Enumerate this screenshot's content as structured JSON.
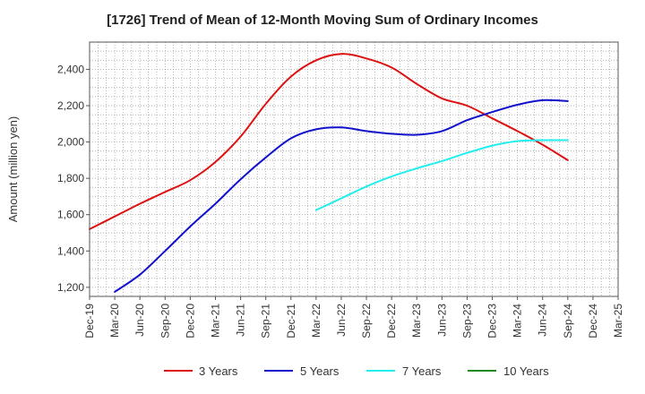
{
  "chart_data": {
    "type": "line",
    "title": "[1726]  Trend of Mean of 12-Month Moving Sum of Ordinary Incomes",
    "ylabel": "Amount (million yen)",
    "xlabel": "",
    "ylim": [
      1150,
      2550
    ],
    "yticks": [
      1200,
      1400,
      1600,
      1800,
      2000,
      2200,
      2400
    ],
    "ytick_labels": [
      "1,200",
      "1,400",
      "1,600",
      "1,800",
      "2,000",
      "2,200",
      "2,400"
    ],
    "categories": [
      "Dec-19",
      "Mar-20",
      "Jun-20",
      "Sep-20",
      "Dec-20",
      "Mar-21",
      "Jun-21",
      "Sep-21",
      "Dec-21",
      "Mar-22",
      "Jun-22",
      "Sep-22",
      "Dec-22",
      "Mar-23",
      "Jun-23",
      "Sep-23",
      "Dec-23",
      "Mar-24",
      "Jun-24",
      "Sep-24",
      "Dec-24",
      "Mar-25"
    ],
    "grid": true,
    "legend_position": "bottom",
    "series": [
      {
        "name": "3 Years",
        "color": "#dd1111",
        "values": [
          1520,
          1590,
          1660,
          1725,
          1790,
          1890,
          2030,
          2210,
          2360,
          2450,
          2485,
          2460,
          2410,
          2320,
          2240,
          2200,
          2130,
          2060,
          1985,
          1900,
          null,
          null
        ]
      },
      {
        "name": "5 Years",
        "color": "#1111cc",
        "values": [
          null,
          1175,
          1270,
          1400,
          1535,
          1660,
          1795,
          1915,
          2020,
          2070,
          2080,
          2060,
          2045,
          2040,
          2060,
          2120,
          2165,
          2205,
          2230,
          2225,
          null,
          null
        ]
      },
      {
        "name": "7 Years",
        "color": "#22eeee",
        "values": [
          null,
          null,
          null,
          null,
          null,
          null,
          null,
          null,
          null,
          1625,
          1690,
          1755,
          1810,
          1855,
          1895,
          1940,
          1980,
          2005,
          2010,
          2010,
          null,
          null
        ]
      },
      {
        "name": "10 Years",
        "color": "#228822",
        "values": [
          null,
          null,
          null,
          null,
          null,
          null,
          null,
          null,
          null,
          null,
          null,
          null,
          null,
          null,
          null,
          null,
          null,
          null,
          null,
          null,
          null,
          null
        ]
      }
    ]
  }
}
